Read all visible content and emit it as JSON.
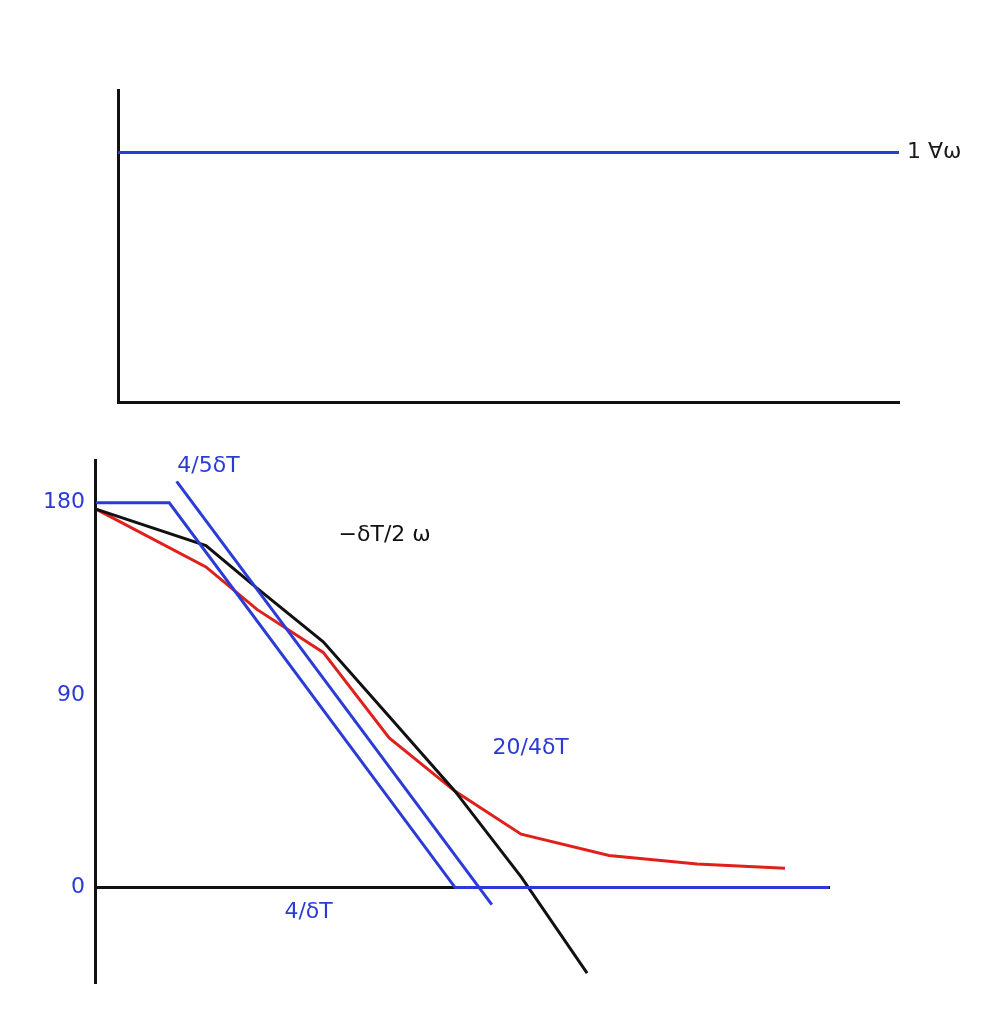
{
  "chart_data": [
    {
      "type": "line",
      "xlim": [
        0,
        10
      ],
      "ylim": [
        0,
        1.25
      ],
      "tick_labels": false,
      "grid": false,
      "series": [
        {
          "color": "#2b3bd6",
          "x": [
            0,
            10
          ],
          "values": [
            1,
            1
          ]
        }
      ],
      "annotations": [
        {
          "text": "1 ∀ω",
          "x": 10,
          "y": 1,
          "color": "#1a1a1a"
        }
      ]
    },
    {
      "type": "line",
      "xlim": [
        0,
        10
      ],
      "ylim": [
        -45,
        200
      ],
      "grid": false,
      "xticks": [
        {
          "value": 2.9,
          "label": "4/δT"
        }
      ],
      "yticks": [
        0,
        90,
        180
      ],
      "series": [
        {
          "color": "#2b3bd6",
          "x": [
            0,
            1.0,
            4.9,
            10
          ],
          "values": [
            180,
            180,
            0,
            0
          ]
        },
        {
          "color": "#2b3bd6",
          "x": [
            1.1,
            5.4
          ],
          "values": [
            190,
            -8
          ]
        },
        {
          "color": "#111111",
          "x": [
            0,
            1.5,
            2.2,
            3.1,
            4.0,
            4.9,
            5.8,
            6.7
          ],
          "values": [
            177,
            160,
            140,
            115,
            80,
            45,
            5,
            -40
          ]
        },
        {
          "color": "#e0201a",
          "x": [
            0,
            1.5,
            2.2,
            3.1,
            4.0,
            4.9,
            5.8,
            7.0,
            8.2,
            9.4
          ],
          "values": [
            177,
            150,
            130,
            110,
            70,
            45,
            25,
            15,
            11,
            9
          ]
        }
      ],
      "annotations": [
        {
          "text": "4/5δT",
          "x": 1.0,
          "y": 197,
          "color": "#2b3bd6"
        },
        {
          "text": "−δT/2 ω",
          "x": 3.2,
          "y": 165,
          "color": "#111111"
        },
        {
          "text": "20/4δT",
          "x": 5.3,
          "y": 65,
          "color": "#2b3bd6"
        }
      ]
    }
  ]
}
